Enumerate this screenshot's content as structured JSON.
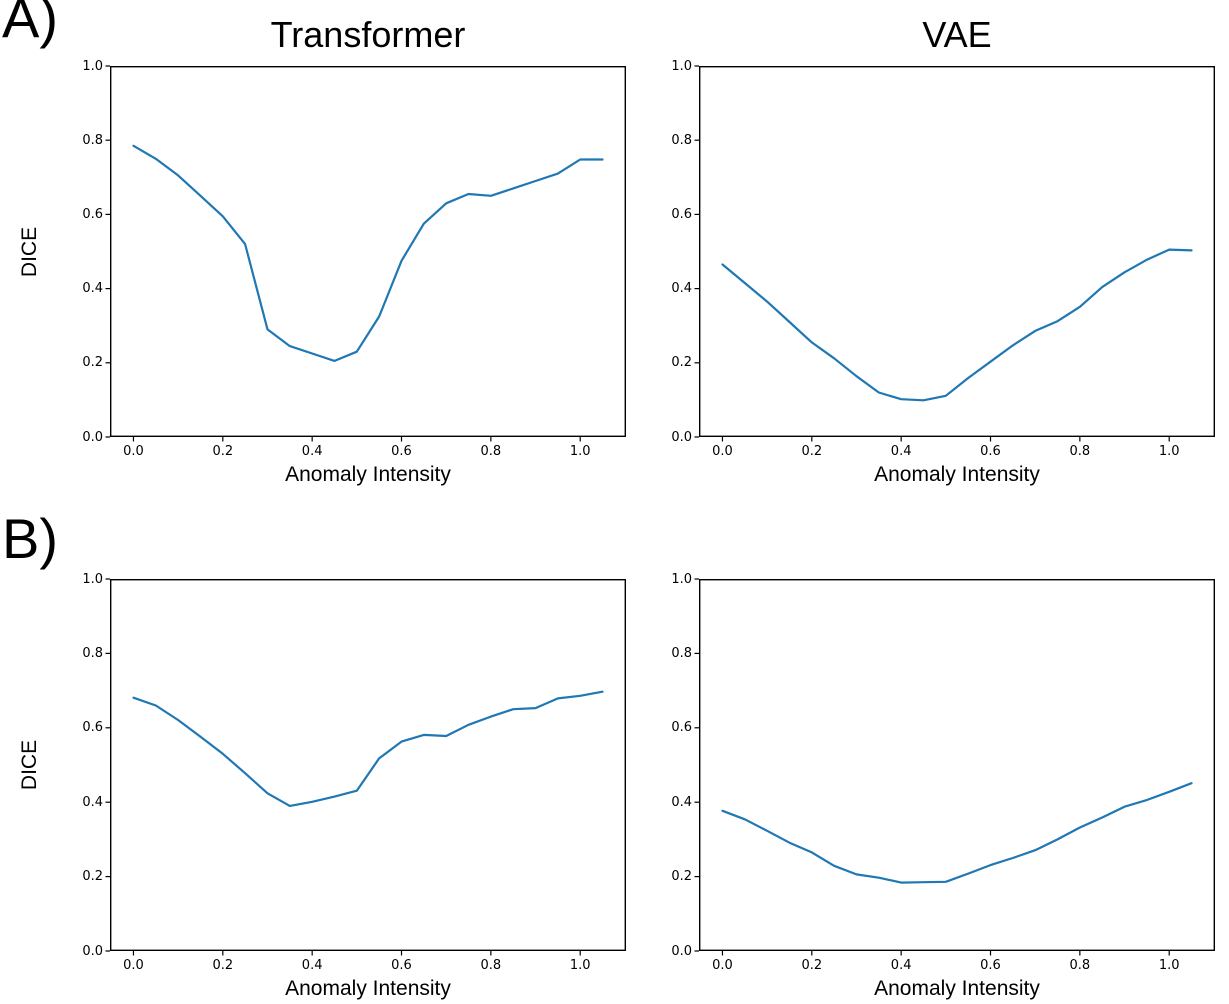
{
  "figure": {
    "panel_labels": [
      "A)",
      "B)"
    ],
    "line_color": "#1f77b4",
    "spine_color": "#000000",
    "background": "#ffffff"
  },
  "chart_data": [
    {
      "type": "line",
      "panel": "A",
      "title": "Transformer",
      "xlabel": "Anomaly Intensity",
      "ylabel": "DICE",
      "xlim": [
        -0.0525,
        1.1025
      ],
      "ylim": [
        0,
        1
      ],
      "xticks": [
        0.0,
        0.2,
        0.4,
        0.6,
        0.8,
        1.0
      ],
      "yticks": [
        0.0,
        0.2,
        0.4,
        0.6,
        0.8,
        1.0
      ],
      "grid": false,
      "legend": "none",
      "x": [
        0.0,
        0.05,
        0.1,
        0.15,
        0.2,
        0.25,
        0.3,
        0.35,
        0.4,
        0.45,
        0.5,
        0.55,
        0.6,
        0.65,
        0.7,
        0.75,
        0.8,
        0.85,
        0.9,
        0.95,
        1.0,
        1.05
      ],
      "y": [
        0.785,
        0.75,
        0.705,
        0.65,
        0.595,
        0.52,
        0.29,
        0.245,
        0.225,
        0.205,
        0.23,
        0.325,
        0.475,
        0.575,
        0.63,
        0.655,
        0.65,
        0.67,
        0.69,
        0.71,
        0.748,
        0.748
      ]
    },
    {
      "type": "line",
      "panel": "A",
      "title": "VAE",
      "xlabel": "Anomaly Intensity",
      "ylabel": "",
      "xlim": [
        -0.0525,
        1.1025
      ],
      "ylim": [
        0,
        1
      ],
      "xticks": [
        0.0,
        0.2,
        0.4,
        0.6,
        0.8,
        1.0
      ],
      "yticks": [
        0.0,
        0.2,
        0.4,
        0.6,
        0.8,
        1.0
      ],
      "grid": false,
      "legend": "none",
      "x": [
        0.0,
        0.05,
        0.1,
        0.15,
        0.2,
        0.25,
        0.3,
        0.35,
        0.4,
        0.45,
        0.5,
        0.55,
        0.6,
        0.65,
        0.7,
        0.75,
        0.8,
        0.85,
        0.9,
        0.95,
        1.0,
        1.05
      ],
      "y": [
        0.465,
        0.415,
        0.365,
        0.31,
        0.255,
        0.212,
        0.164,
        0.12,
        0.102,
        0.099,
        0.111,
        0.159,
        0.203,
        0.247,
        0.286,
        0.312,
        0.351,
        0.404,
        0.444,
        0.478,
        0.505,
        0.503
      ]
    },
    {
      "type": "line",
      "panel": "B",
      "title": "",
      "xlabel": "Anomaly Intensity",
      "ylabel": "DICE",
      "xlim": [
        -0.0525,
        1.1025
      ],
      "ylim": [
        0,
        1
      ],
      "xticks": [
        0.0,
        0.2,
        0.4,
        0.6,
        0.8,
        1.0
      ],
      "yticks": [
        0.0,
        0.2,
        0.4,
        0.6,
        0.8,
        1.0
      ],
      "grid": false,
      "legend": "none",
      "x": [
        0.0,
        0.05,
        0.1,
        0.15,
        0.2,
        0.25,
        0.3,
        0.35,
        0.4,
        0.45,
        0.5,
        0.55,
        0.6,
        0.65,
        0.7,
        0.75,
        0.8,
        0.85,
        0.9,
        0.95,
        1.0,
        1.05
      ],
      "y": [
        0.681,
        0.66,
        0.621,
        0.576,
        0.53,
        0.478,
        0.424,
        0.39,
        0.401,
        0.415,
        0.431,
        0.518,
        0.563,
        0.581,
        0.578,
        0.608,
        0.63,
        0.65,
        0.653,
        0.679,
        0.686,
        0.697
      ]
    },
    {
      "type": "line",
      "panel": "B",
      "title": "",
      "xlabel": "Anomaly Intensity",
      "ylabel": "",
      "xlim": [
        -0.0525,
        1.1025
      ],
      "ylim": [
        0,
        1
      ],
      "xticks": [
        0.0,
        0.2,
        0.4,
        0.6,
        0.8,
        1.0
      ],
      "yticks": [
        0.0,
        0.2,
        0.4,
        0.6,
        0.8,
        1.0
      ],
      "grid": false,
      "legend": "none",
      "x": [
        0.0,
        0.05,
        0.1,
        0.15,
        0.2,
        0.25,
        0.3,
        0.35,
        0.4,
        0.45,
        0.5,
        0.55,
        0.6,
        0.65,
        0.7,
        0.75,
        0.8,
        0.85,
        0.9,
        0.95,
        1.0,
        1.05
      ],
      "y": [
        0.377,
        0.354,
        0.323,
        0.291,
        0.265,
        0.229,
        0.206,
        0.197,
        0.184,
        0.185,
        0.186,
        0.208,
        0.231,
        0.25,
        0.271,
        0.3,
        0.332,
        0.359,
        0.388,
        0.406,
        0.428,
        0.451
      ]
    }
  ]
}
